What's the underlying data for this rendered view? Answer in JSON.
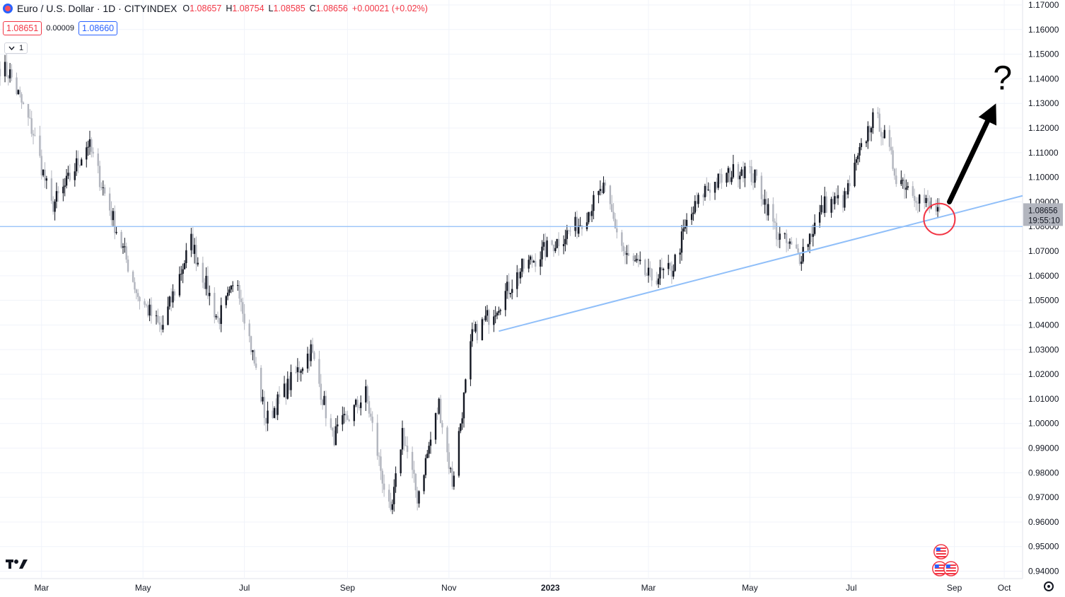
{
  "header": {
    "title": "Euro / U.S. Dollar · 1D · CITYINDEX",
    "open_label": "O",
    "open": "1.08657",
    "high_label": "H",
    "high": "1.08754",
    "low_label": "L",
    "low": "1.08585",
    "close_label": "C",
    "close": "1.08656",
    "change": "+0.00021 (+0.02%)"
  },
  "quote": {
    "sell": "1.08651",
    "spread": "0.00009",
    "buy": "1.08660"
  },
  "indicator_toggle": "1",
  "current_price": {
    "price": "1.08656",
    "countdown": "19:55:10"
  },
  "annotation": {
    "question": "?"
  },
  "colors": {
    "up": "#131722",
    "down": "#b2b5be",
    "line": "#90bff9",
    "circle": "#f23645",
    "price_tag": "#b2b5be"
  },
  "chart_data": {
    "type": "candlestick",
    "y_axis_ticks": [
      "1.17000",
      "1.16000",
      "1.15000",
      "1.14000",
      "1.13000",
      "1.12000",
      "1.11000",
      "1.10000",
      "1.09000",
      "1.08000",
      "1.07000",
      "1.06000",
      "1.05000",
      "1.04000",
      "1.03000",
      "1.02000",
      "1.01000",
      "1.00000",
      "0.99000",
      "0.98000",
      "0.97000",
      "0.96000",
      "0.95000",
      "0.94000"
    ],
    "ylim": [
      0.937,
      1.172
    ],
    "x_axis_ticks": [
      {
        "label": "Mar",
        "date": "2022-03-01",
        "bold": false
      },
      {
        "label": "May",
        "date": "2022-05-01",
        "bold": false
      },
      {
        "label": "Jul",
        "date": "2022-07-01",
        "bold": false
      },
      {
        "label": "Sep",
        "date": "2022-09-01",
        "bold": false
      },
      {
        "label": "Nov",
        "date": "2022-11-01",
        "bold": false
      },
      {
        "label": "2023",
        "date": "2023-01-01",
        "bold": true
      },
      {
        "label": "Mar",
        "date": "2023-03-01",
        "bold": false
      },
      {
        "label": "May",
        "date": "2023-05-01",
        "bold": false
      },
      {
        "label": "Jul",
        "date": "2023-07-01",
        "bold": false
      },
      {
        "label": "Sep",
        "date": "2023-09-01",
        "bold": false
      },
      {
        "label": "Oct",
        "date": "2023-10-01",
        "bold": false
      }
    ],
    "xlim": [
      "2022-02-04",
      "2023-10-12"
    ],
    "close_path": [
      [
        "2022-02-04",
        1.145
      ],
      [
        "2022-02-10",
        1.142
      ],
      [
        "2022-02-24",
        1.118
      ],
      [
        "2022-03-07",
        1.088
      ],
      [
        "2022-03-15",
        1.096
      ],
      [
        "2022-03-29",
        1.114
      ],
      [
        "2022-04-13",
        1.083
      ],
      [
        "2022-04-28",
        1.052
      ],
      [
        "2022-05-12",
        1.038
      ],
      [
        "2022-05-30",
        1.074
      ],
      [
        "2022-06-15",
        1.042
      ],
      [
        "2022-06-27",
        1.058
      ],
      [
        "2022-07-14",
        1.001
      ],
      [
        "2022-08-10",
        1.03
      ],
      [
        "2022-08-23",
        0.994
      ],
      [
        "2022-09-12",
        1.012
      ],
      [
        "2022-09-27",
        0.961
      ],
      [
        "2022-10-04",
        0.997
      ],
      [
        "2022-10-13",
        0.97
      ],
      [
        "2022-10-26",
        1.008
      ],
      [
        "2022-11-03",
        0.976
      ],
      [
        "2022-11-15",
        1.035
      ],
      [
        "2022-12-01",
        1.049
      ],
      [
        "2022-12-15",
        1.063
      ],
      [
        "2023-01-18",
        1.081
      ],
      [
        "2023-02-02",
        1.095
      ],
      [
        "2023-02-15",
        1.068
      ],
      [
        "2023-03-02",
        1.059
      ],
      [
        "2023-03-15",
        1.062
      ],
      [
        "2023-03-24",
        1.081
      ],
      [
        "2023-04-04",
        1.095
      ],
      [
        "2023-04-26",
        1.104
      ],
      [
        "2023-05-05",
        1.099
      ],
      [
        "2023-05-18",
        1.076
      ],
      [
        "2023-05-31",
        1.068
      ],
      [
        "2023-06-15",
        1.089
      ],
      [
        "2023-06-27",
        1.091
      ],
      [
        "2023-07-13",
        1.123
      ],
      [
        "2023-07-18",
        1.122
      ],
      [
        "2023-07-28",
        1.101
      ],
      [
        "2023-08-08",
        1.094
      ],
      [
        "2023-08-18",
        1.087
      ],
      [
        "2023-08-23",
        1.087
      ]
    ],
    "last_close": 1.08656,
    "horizontal_line": {
      "price": 1.08
    },
    "trendline": {
      "from": [
        "2022-12-01",
        1.0375
      ],
      "to": [
        "2023-10-12",
        1.0925
      ]
    },
    "highlight_circle": {
      "date": "2023-08-23",
      "price": 1.083
    },
    "arrow": {
      "from": [
        "2023-08-29",
        1.09
      ],
      "to": [
        "2023-09-26",
        1.13
      ]
    },
    "question_mark_at": [
      "2023-09-30",
      1.14
    ],
    "event_markers": [
      {
        "date": "2023-08-24",
        "count": 1
      },
      {
        "date": "2023-08-24",
        "count": 2
      }
    ]
  }
}
